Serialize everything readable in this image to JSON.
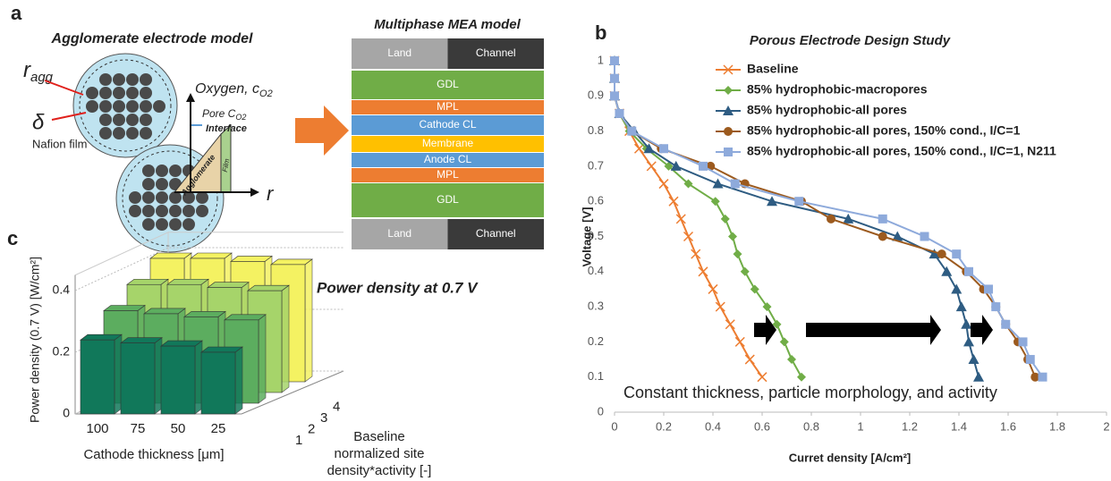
{
  "panel_labels": [
    "a",
    "b",
    "c"
  ],
  "agglomerate_model": {
    "title": "Agglomerate electrode model",
    "radius": {
      "symbol": "r",
      "subscript": "agg"
    },
    "film_thickness": "δ",
    "film_label": "Nafion film",
    "oxygen": {
      "text": "Oxygen, c",
      "subscript": "O2"
    },
    "pore": {
      "text": "Pore C",
      "subscript": "O2"
    },
    "interface": "Interface",
    "radial_axis": "r",
    "agglomerate": "Agglomerate",
    "film": "Film"
  },
  "mea_model": {
    "title": "Multiphase MEA model",
    "top": [
      "Land",
      "Channel"
    ],
    "layers": [
      "GDL",
      "MPL",
      "Cathode CL",
      "Membrane",
      "Anode CL",
      "MPL",
      "GDL"
    ],
    "bottom": [
      "Land",
      "Channel"
    ]
  },
  "chart_data": [
    {
      "type": "line",
      "title": "Porous Electrode Design Study",
      "xlabel": "Curret density [A/cm²]",
      "ylabel": "Voltage [V]",
      "xlim": [
        0,
        2
      ],
      "xticks": [
        0,
        0.2,
        0.4,
        0.6,
        0.8,
        1,
        1.2,
        1.4,
        1.6,
        1.8,
        2
      ],
      "ylim": [
        0,
        1
      ],
      "yticks": [
        0,
        0.1,
        0.2,
        0.3,
        0.4,
        0.5,
        0.6,
        0.7,
        0.8,
        0.9,
        1
      ],
      "annotation": "Constant thickness, particle morphology, and activity",
      "series": [
        {
          "name": "Baseline",
          "color": "#ed7d31",
          "marker": "x",
          "x": [
            0,
            0,
            0,
            0.02,
            0.06,
            0.1,
            0.15,
            0.2,
            0.24,
            0.27,
            0.3,
            0.33,
            0.36,
            0.4,
            0.43,
            0.47,
            0.51,
            0.55,
            0.6
          ],
          "values": [
            1,
            0.95,
            0.9,
            0.85,
            0.8,
            0.75,
            0.7,
            0.65,
            0.6,
            0.55,
            0.5,
            0.45,
            0.4,
            0.35,
            0.3,
            0.25,
            0.2,
            0.15,
            0.1
          ]
        },
        {
          "name": "85% hydrophobic-macropores",
          "color": "#70ad47",
          "marker": "diamond",
          "x": [
            0,
            0,
            0,
            0.02,
            0.06,
            0.13,
            0.22,
            0.3,
            0.41,
            0.45,
            0.48,
            0.5,
            0.53,
            0.57,
            0.62,
            0.66,
            0.69,
            0.72,
            0.76
          ],
          "values": [
            1,
            0.95,
            0.9,
            0.85,
            0.8,
            0.75,
            0.7,
            0.65,
            0.6,
            0.55,
            0.5,
            0.45,
            0.4,
            0.35,
            0.3,
            0.25,
            0.2,
            0.15,
            0.1
          ]
        },
        {
          "name": "85% hydrophobic-all pores",
          "color": "#2e5c82",
          "marker": "triangle",
          "x": [
            0,
            0,
            0,
            0.02,
            0.08,
            0.14,
            0.25,
            0.42,
            0.64,
            0.95,
            1.15,
            1.3,
            1.35,
            1.39,
            1.41,
            1.43,
            1.44,
            1.46,
            1.48
          ],
          "values": [
            1,
            0.95,
            0.9,
            0.85,
            0.8,
            0.75,
            0.7,
            0.65,
            0.6,
            0.55,
            0.5,
            0.45,
            0.4,
            0.35,
            0.3,
            0.25,
            0.2,
            0.15,
            0.1
          ]
        },
        {
          "name": "85% hydrophobic-all pores, 150% cond., I/C=1",
          "color": "#9c5a1e",
          "marker": "circle",
          "x": [
            0,
            0,
            0,
            0.02,
            0.07,
            0.19,
            0.39,
            0.53,
            0.76,
            0.88,
            1.09,
            1.33,
            1.43,
            1.5,
            1.55,
            1.59,
            1.64,
            1.68,
            1.71
          ],
          "values": [
            1,
            0.95,
            0.9,
            0.85,
            0.8,
            0.75,
            0.7,
            0.65,
            0.6,
            0.55,
            0.5,
            0.45,
            0.4,
            0.35,
            0.3,
            0.25,
            0.2,
            0.15,
            0.1
          ]
        },
        {
          "name": "85% hydrophobic-all pores, 150% cond., I/C=1, N211",
          "color": "#8eaadb",
          "marker": "square",
          "x": [
            0,
            0,
            0,
            0.02,
            0.07,
            0.2,
            0.36,
            0.49,
            0.75,
            1.09,
            1.26,
            1.39,
            1.44,
            1.52,
            1.55,
            1.59,
            1.66,
            1.69,
            1.74
          ],
          "values": [
            1,
            0.95,
            0.9,
            0.85,
            0.8,
            0.75,
            0.7,
            0.65,
            0.6,
            0.55,
            0.5,
            0.45,
            0.4,
            0.35,
            0.3,
            0.25,
            0.2,
            0.15,
            0.1
          ]
        }
      ]
    },
    {
      "type": "bar3d",
      "title": "Power density at 0.7 V",
      "xlabel": "Cathode thickness [μm]",
      "ylabel": [
        "Baseline",
        "normalized site",
        "density*activity [-]"
      ],
      "zlabel": "Power density (0.7 V) [W/cm²]",
      "categories": [
        "100",
        "75",
        "50",
        "25"
      ],
      "depth_categories": [
        "1",
        "2",
        "3",
        "4"
      ],
      "zlim": [
        0,
        0.45
      ],
      "zticks": [
        0,
        0.2,
        0.4
      ],
      "series": [
        {
          "color": "#11785a",
          "values": [
            0.24,
            0.23,
            0.22,
            0.2
          ]
        },
        {
          "color": "#5cad5f",
          "values": [
            0.3,
            0.29,
            0.28,
            0.27
          ]
        },
        {
          "color": "#a6d46a",
          "values": [
            0.35,
            0.35,
            0.34,
            0.33
          ]
        },
        {
          "color": "#f4f262",
          "values": [
            0.4,
            0.4,
            0.39,
            0.38
          ]
        }
      ]
    }
  ]
}
